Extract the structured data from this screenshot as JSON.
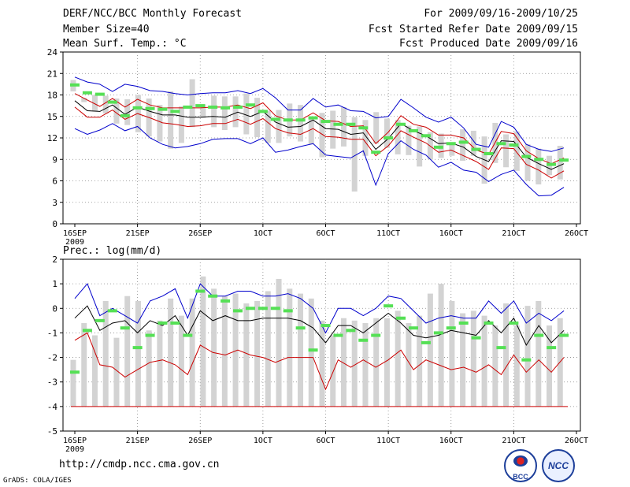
{
  "header": {
    "title": "DERF/NCC/BCC Monthly Forecast",
    "member_size": "Member Size=40",
    "variable1": "Mean Surf. Temp.: °C",
    "forecast_period": "For 2009/09/16-2009/10/25",
    "fcst_started": "Fcst Started Refer Date 2009/09/15",
    "fcst_produced": "Fcst Produced Date 2009/09/16"
  },
  "footer": {
    "url": "http://cmdp.ncc.cma.gov.cn",
    "grads": "GrADS: COLA/IGES",
    "logo_bcc": "BCC",
    "logo_ncc": "NCC"
  },
  "colors": {
    "box": "#d3d3d3",
    "obs": "#55e055",
    "envelope": "#0000cc",
    "spread": "#cc0000",
    "mean": "#000000"
  },
  "chart_data": [
    {
      "type": "line",
      "title": "Mean Surf. Temp.: °C",
      "xlabel": "",
      "ylabel": "°C",
      "ylim": [
        0,
        24
      ],
      "yticks": [
        0,
        3,
        6,
        9,
        12,
        15,
        18,
        21,
        24
      ],
      "grid": true,
      "x": [
        0,
        1,
        2,
        3,
        4,
        5,
        6,
        7,
        8,
        9,
        10,
        11,
        12,
        13,
        14,
        15,
        16,
        17,
        18,
        19,
        20,
        21,
        22,
        23,
        24,
        25,
        26,
        27,
        28,
        29,
        30,
        31,
        32,
        33,
        34,
        35,
        36,
        37,
        38,
        39
      ],
      "xtick_positions": [
        0,
        5,
        10,
        15,
        20,
        25,
        30,
        35,
        40
      ],
      "xtick_labels": [
        "16SEP",
        "21SEP",
        "26SEP",
        "1OCT",
        "6OCT",
        "11OCT",
        "16OCT",
        "21OCT",
        "26OCT"
      ],
      "xtick_sublabel": "2009",
      "series": [
        {
          "name": "max",
          "values": [
            20.5,
            19.8,
            19.5,
            18.5,
            19.5,
            19.2,
            18.6,
            18.5,
            18.2,
            18.0,
            18.2,
            18.3,
            18.3,
            18.6,
            18.2,
            18.9,
            17.6,
            15.9,
            15.9,
            17.5,
            16.3,
            16.6,
            15.8,
            15.7,
            14.8,
            15.0,
            17.4,
            16.2,
            14.9,
            14.2,
            14.9,
            13.4,
            11.1,
            10.7,
            14.3,
            13.5,
            11.1,
            10.4,
            10.1,
            10.6
          ]
        },
        {
          "name": "upper",
          "values": [
            18.2,
            17.3,
            16.4,
            17.5,
            16.3,
            17.4,
            16.6,
            16.2,
            16.2,
            16.2,
            16.2,
            16.3,
            16.3,
            16.6,
            16.1,
            16.9,
            15.1,
            14.5,
            14.5,
            15.5,
            14.4,
            14.3,
            13.6,
            13.7,
            11.2,
            12.8,
            15.1,
            13.9,
            13.5,
            12.4,
            12.4,
            12.0,
            10.3,
            9.7,
            12.9,
            12.6,
            10.2,
            9.1,
            8.4,
            9.2
          ]
        },
        {
          "name": "mean",
          "values": [
            17.2,
            15.8,
            15.7,
            16.6,
            15.3,
            16.3,
            15.7,
            15.2,
            15.2,
            14.9,
            14.9,
            15.0,
            14.9,
            15.6,
            15.0,
            15.7,
            14.2,
            13.5,
            13.6,
            14.5,
            13.3,
            13.2,
            12.5,
            12.7,
            10.4,
            11.9,
            14.0,
            13.0,
            12.3,
            11.2,
            11.3,
            10.7,
            9.4,
            8.7,
            11.6,
            11.5,
            9.3,
            8.4,
            7.6,
            8.4
          ]
        },
        {
          "name": "lower",
          "values": [
            16.3,
            14.9,
            14.9,
            15.9,
            14.6,
            15.4,
            14.8,
            14.1,
            13.9,
            13.6,
            13.7,
            14.0,
            14.0,
            14.6,
            13.9,
            14.7,
            13.3,
            12.7,
            12.5,
            13.3,
            12.2,
            12.1,
            11.8,
            11.8,
            9.5,
            10.9,
            13.0,
            12.1,
            11.3,
            10.0,
            10.3,
            9.5,
            8.7,
            7.6,
            10.6,
            10.5,
            8.3,
            7.5,
            6.4,
            7.4
          ]
        },
        {
          "name": "min",
          "values": [
            13.3,
            12.5,
            13.1,
            14.0,
            13.0,
            13.6,
            12.0,
            11.1,
            10.6,
            10.8,
            11.2,
            11.8,
            11.9,
            11.9,
            11.2,
            12.0,
            10.0,
            10.3,
            10.8,
            11.2,
            9.6,
            9.4,
            9.2,
            10.2,
            5.4,
            9.8,
            11.6,
            10.4,
            9.6,
            7.9,
            8.6,
            7.5,
            7.2,
            5.9,
            6.9,
            7.5,
            5.5,
            3.9,
            4.0,
            5.1
          ]
        }
      ],
      "boxes": [
        [
          18.5,
          20.1
        ],
        [
          17.0,
          17.6
        ],
        [
          15.7,
          18.0
        ],
        [
          15.4,
          17.9
        ],
        [
          14.0,
          17.5
        ],
        [
          13.8,
          17.4
        ],
        [
          12.8,
          18.0
        ],
        [
          12.2,
          17.5
        ],
        [
          11.5,
          16.6
        ],
        [
          10.5,
          18.5
        ],
        [
          11.3,
          16.4
        ],
        [
          13.5,
          20.2
        ],
        [
          14.8,
          16.7
        ],
        [
          13.5,
          17.9
        ],
        [
          13.1,
          17.8
        ],
        [
          13.5,
          17.8
        ],
        [
          12.5,
          18.2
        ],
        [
          12.1,
          17.6
        ],
        [
          11.3,
          15.8
        ],
        [
          11.3,
          15.9
        ],
        [
          12.2,
          16.8
        ],
        [
          11.5,
          16.6
        ],
        [
          11.1,
          14.6
        ],
        [
          9.3,
          15.5
        ],
        [
          10.5,
          15.8
        ],
        [
          10.8,
          16.3
        ],
        [
          4.5,
          14.9
        ],
        [
          9.5,
          14.5
        ],
        [
          11.2,
          15.6
        ],
        [
          10.6,
          14.7
        ],
        [
          9.7,
          14.5
        ],
        [
          9.6,
          13.7
        ],
        [
          8.0,
          13.6
        ],
        [
          9.0,
          12.8
        ],
        [
          9.2,
          12.6
        ],
        [
          9.5,
          11.3
        ],
        [
          8.8,
          13.2
        ],
        [
          9.5,
          13.0
        ],
        [
          5.6,
          12.2
        ],
        [
          8.5,
          14.1
        ],
        [
          7.9,
          12.5
        ],
        [
          7.4,
          12.9
        ],
        [
          6.0,
          11.1
        ],
        [
          5.5,
          10.5
        ],
        [
          6.8,
          9.5
        ],
        [
          6.2,
          10.9
        ]
      ],
      "obs": [
        19.4,
        18.3,
        18.1,
        17.0,
        15.1,
        16.2,
        16.1,
        16.0,
        15.7,
        16.3,
        16.5,
        16.3,
        16.2,
        16.3,
        16.6,
        15.7,
        14.6,
        14.5,
        14.5,
        14.8,
        14.3,
        13.9,
        13.9,
        13.4,
        10.0,
        12.0,
        13.9,
        13.0,
        12.3,
        10.7,
        11.2,
        11.4,
        10.4,
        9.8,
        11.2,
        11.0,
        9.4,
        9.0,
        8.3,
        8.9
      ]
    },
    {
      "type": "line",
      "title": "Prec.: log(mm/d)",
      "xlabel": "",
      "ylabel": "log(mm/d)",
      "ylim": [
        -5,
        2
      ],
      "yticks": [
        -5,
        -4,
        -3,
        -2,
        -1,
        0,
        1,
        2
      ],
      "grid": true,
      "x": [
        0,
        1,
        2,
        3,
        4,
        5,
        6,
        7,
        8,
        9,
        10,
        11,
        12,
        13,
        14,
        15,
        16,
        17,
        18,
        19,
        20,
        21,
        22,
        23,
        24,
        25,
        26,
        27,
        28,
        29,
        30,
        31,
        32,
        33,
        34,
        35,
        36,
        37,
        38,
        39
      ],
      "xtick_positions": [
        0,
        5,
        10,
        15,
        20,
        25,
        30,
        35,
        40
      ],
      "xtick_labels": [
        "16SEP",
        "21SEP",
        "26SEP",
        "1OCT",
        "6OCT",
        "11OCT",
        "16OCT",
        "21OCT",
        "26OCT"
      ],
      "xtick_sublabel": "2009",
      "baseline": -4,
      "series": [
        {
          "name": "max",
          "values": [
            0.4,
            1.0,
            -0.3,
            0.0,
            -0.3,
            -0.6,
            0.3,
            0.5,
            0.8,
            -0.4,
            1.0,
            0.5,
            0.5,
            0.7,
            0.7,
            0.5,
            0.5,
            0.6,
            0.4,
            0.0,
            -1.0,
            0.0,
            0.0,
            -0.3,
            0.0,
            0.5,
            0.4,
            -0.1,
            -0.6,
            -0.4,
            -0.3,
            -0.4,
            -0.4,
            0.3,
            -0.2,
            0.3,
            -0.6,
            -0.2,
            -0.5,
            -0.1
          ]
        },
        {
          "name": "mean",
          "values": [
            -0.4,
            0.1,
            -0.9,
            -0.6,
            -0.5,
            -1.0,
            -0.5,
            -0.7,
            -0.3,
            -1.1,
            -0.1,
            -0.5,
            -0.3,
            -0.5,
            -0.5,
            -0.4,
            -0.4,
            -0.4,
            -0.5,
            -0.8,
            -1.4,
            -0.7,
            -0.7,
            -1.0,
            -0.6,
            -0.2,
            -0.6,
            -1.1,
            -1.2,
            -1.1,
            -0.9,
            -1.0,
            -1.1,
            -0.5,
            -1.0,
            -0.4,
            -1.5,
            -0.7,
            -1.4,
            -0.9
          ]
        },
        {
          "name": "lower",
          "values": [
            -1.3,
            -1.0,
            -2.3,
            -2.4,
            -2.8,
            -2.5,
            -2.2,
            -2.1,
            -2.3,
            -2.7,
            -1.5,
            -1.8,
            -1.9,
            -1.7,
            -1.9,
            -2.0,
            -2.2,
            -2.0,
            -2.0,
            -2.0,
            -3.3,
            -2.1,
            -2.4,
            -2.1,
            -2.4,
            -2.1,
            -1.7,
            -2.5,
            -2.1,
            -2.3,
            -2.5,
            -2.4,
            -2.6,
            -2.3,
            -2.7,
            -1.9,
            -2.6,
            -2.1,
            -2.6,
            -2.0
          ]
        }
      ],
      "boxes": [
        [
          -4.0,
          -2.1
        ],
        [
          -4.0,
          -0.6
        ],
        [
          -4.0,
          -1.1
        ],
        [
          -4.0,
          0.3
        ],
        [
          -4.0,
          -1.2
        ],
        [
          -4.0,
          0.5
        ],
        [
          -4.0,
          0.3
        ],
        [
          -4.0,
          -0.9
        ],
        [
          -4.0,
          -0.5
        ],
        [
          -4.0,
          0.4
        ],
        [
          -4.0,
          -0.3
        ],
        [
          -4.0,
          0.4
        ],
        [
          -4.0,
          1.3
        ],
        [
          -4.0,
          0.8
        ],
        [
          -4.0,
          0.5
        ],
        [
          -4.0,
          0.6
        ],
        [
          -4.0,
          0.2
        ],
        [
          -4.0,
          0.3
        ],
        [
          -4.0,
          0.7
        ],
        [
          -4.0,
          1.2
        ],
        [
          -4.0,
          0.8
        ],
        [
          -4.0,
          0.6
        ],
        [
          -4.0,
          0.4
        ],
        [
          -4.0,
          -0.5
        ],
        [
          -4.0,
          -1.1
        ],
        [
          -4.0,
          -0.4
        ],
        [
          -4.0,
          -0.5
        ],
        [
          -4.0,
          -0.6
        ],
        [
          -4.0,
          -0.4
        ],
        [
          -4.0,
          -0.4
        ],
        [
          -4.0,
          -0.1
        ],
        [
          -4.0,
          -0.6
        ],
        [
          -4.0,
          -0.3
        ],
        [
          -4.0,
          0.6
        ],
        [
          -4.0,
          1.0
        ],
        [
          -4.0,
          0.3
        ],
        [
          -4.0,
          -0.2
        ],
        [
          -4.0,
          -0.1
        ],
        [
          -4.0,
          -0.3
        ],
        [
          -4.0,
          -0.7
        ],
        [
          -4.0,
          0.2
        ],
        [
          -4.0,
          -0.7
        ],
        [
          -4.0,
          0.1
        ],
        [
          -4.0,
          0.3
        ],
        [
          -4.0,
          -0.7
        ],
        [
          -4.0,
          -0.4
        ]
      ],
      "obs": [
        -2.6,
        -0.9,
        -0.5,
        -0.1,
        -0.8,
        -1.6,
        -1.1,
        -0.6,
        -0.6,
        -1.1,
        0.7,
        0.5,
        0.3,
        -0.1,
        0.0,
        0.0,
        0.0,
        -0.1,
        -0.8,
        -1.7,
        -0.7,
        -1.1,
        -0.9,
        -1.3,
        -1.1,
        0.1,
        -0.4,
        -0.8,
        -1.4,
        -1.0,
        -0.8,
        -0.6,
        -1.2,
        -0.6,
        -1.6,
        -0.6,
        -2.1,
        -1.1,
        -1.6,
        -1.1
      ]
    }
  ]
}
